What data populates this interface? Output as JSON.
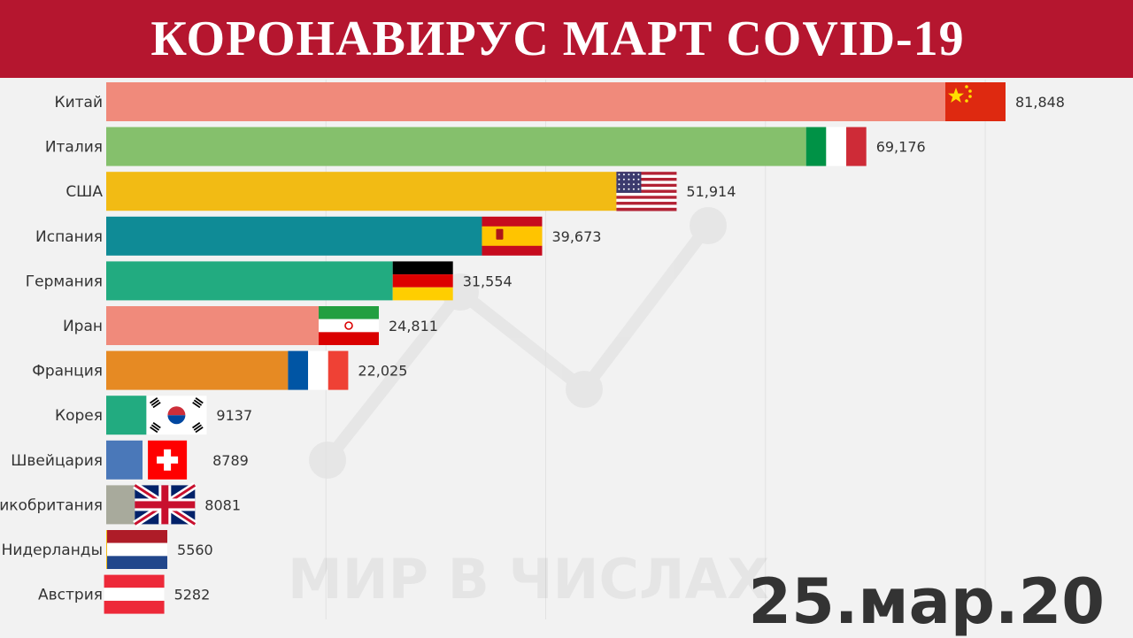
{
  "header": {
    "title": "КОРОНАВИРУС  МАРТ  COVID-19"
  },
  "date_label": "25.мар.20",
  "watermark": "МИР В ЧИСЛАХ",
  "colors": {
    "banner": "#b5162f",
    "background": "#f2f2f2",
    "bars": [
      "#f08a7b",
      "#85c06c",
      "#f2bb14",
      "#0f8b96",
      "#22ab80",
      "#f08a7b",
      "#e68a23",
      "#22ab80",
      "#4a78b9",
      "#a8aa9c",
      "#f2bb14",
      "#e68a23"
    ]
  },
  "icons": {
    "flags": [
      "china-flag-icon",
      "italy-flag-icon",
      "usa-flag-icon",
      "spain-flag-icon",
      "germany-flag-icon",
      "iran-flag-icon",
      "france-flag-icon",
      "south-korea-flag-icon",
      "switzerland-flag-icon",
      "uk-flag-icon",
      "netherlands-flag-icon",
      "austria-flag-icon"
    ]
  },
  "chart_data": {
    "type": "bar",
    "orientation": "horizontal",
    "title": "КОРОНАВИРУС  МАРТ  COVID-19",
    "categories": [
      "Китай",
      "Италия",
      "США",
      "Испания",
      "Германия",
      "Иран",
      "Франция",
      "Корея",
      "Швейцария",
      "Великобритания",
      "Нидерланды",
      "Австрия"
    ],
    "values": [
      81848,
      69176,
      51914,
      39673,
      31554,
      24811,
      22025,
      9137,
      8789,
      8081,
      5560,
      5282
    ],
    "value_labels": [
      "81,848",
      "69,176",
      "51,914",
      "39,673",
      "31,554",
      "24,811",
      "22,025",
      "9137",
      "8789",
      "8081",
      "5560",
      "5282"
    ],
    "xlim": [
      0,
      92000
    ],
    "grid": true,
    "date": "25.мар.20"
  }
}
